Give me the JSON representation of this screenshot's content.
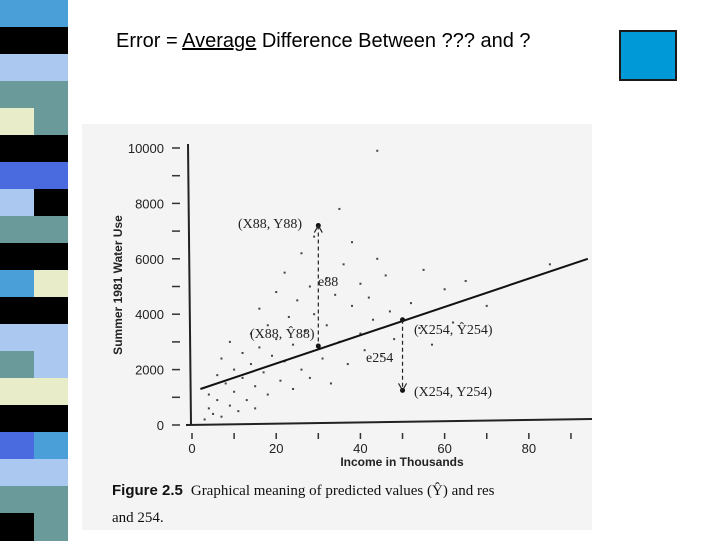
{
  "slide": {
    "title_prefix": "Error = ",
    "title_underlined": "Average",
    "title_suffix": " Difference Between ??? and ?",
    "accent_color": "#0099d8"
  },
  "stripe_colors": [
    "#4a9fd8",
    "#000000",
    "#aac8f0",
    "#6a9a9a",
    "#e8ecc8",
    "#000000",
    "#4a6ae0",
    "#aac8f0",
    "#6a9a9a",
    "#000000"
  ],
  "chart_data": {
    "type": "scatter",
    "title": "",
    "xlabel": "Income in Thousands",
    "ylabel": "Summer 1981 Water Use",
    "xlim": [
      0,
      95
    ],
    "ylim": [
      0,
      10000
    ],
    "x_ticks": [
      "0",
      "20",
      "40",
      "60",
      "80"
    ],
    "y_ticks": [
      "0",
      "2000",
      "4000",
      "6000",
      "8000",
      "10000"
    ],
    "regression_line": {
      "x": [
        2,
        94
      ],
      "y": [
        1300,
        6000
      ]
    },
    "annotations": {
      "obs_88": "(X88, Y88)",
      "pred_88": "(X88, Ŷ88)",
      "resid_88": "e88",
      "pred_254": "(X254, Ŷ254)",
      "resid_254": "e254",
      "obs_254": "(X254, Y254)"
    },
    "highlight_points": [
      {
        "x": 30,
        "y": 7200
      },
      {
        "x": 30,
        "y": 2850
      },
      {
        "x": 50,
        "y": 3800
      },
      {
        "x": 50,
        "y": 1250
      }
    ],
    "scatter_points": [
      {
        "x": 3,
        "y": 200
      },
      {
        "x": 4,
        "y": 600
      },
      {
        "x": 4,
        "y": 1100
      },
      {
        "x": 5,
        "y": 400
      },
      {
        "x": 6,
        "y": 1800
      },
      {
        "x": 6,
        "y": 900
      },
      {
        "x": 7,
        "y": 300
      },
      {
        "x": 7,
        "y": 2400
      },
      {
        "x": 8,
        "y": 1500
      },
      {
        "x": 9,
        "y": 700
      },
      {
        "x": 9,
        "y": 3000
      },
      {
        "x": 10,
        "y": 1200
      },
      {
        "x": 10,
        "y": 2000
      },
      {
        "x": 11,
        "y": 500
      },
      {
        "x": 12,
        "y": 2600
      },
      {
        "x": 12,
        "y": 1700
      },
      {
        "x": 13,
        "y": 900
      },
      {
        "x": 14,
        "y": 3300
      },
      {
        "x": 14,
        "y": 2200
      },
      {
        "x": 15,
        "y": 1400
      },
      {
        "x": 15,
        "y": 600
      },
      {
        "x": 16,
        "y": 4200
      },
      {
        "x": 16,
        "y": 2800
      },
      {
        "x": 17,
        "y": 1900
      },
      {
        "x": 18,
        "y": 3600
      },
      {
        "x": 18,
        "y": 1100
      },
      {
        "x": 19,
        "y": 2500
      },
      {
        "x": 20,
        "y": 4800
      },
      {
        "x": 20,
        "y": 3100
      },
      {
        "x": 21,
        "y": 1600
      },
      {
        "x": 22,
        "y": 5500
      },
      {
        "x": 22,
        "y": 2300
      },
      {
        "x": 23,
        "y": 3900
      },
      {
        "x": 24,
        "y": 1300
      },
      {
        "x": 24,
        "y": 2900
      },
      {
        "x": 25,
        "y": 4500
      },
      {
        "x": 26,
        "y": 6200
      },
      {
        "x": 26,
        "y": 2000
      },
      {
        "x": 27,
        "y": 3400
      },
      {
        "x": 28,
        "y": 5000
      },
      {
        "x": 28,
        "y": 1700
      },
      {
        "x": 29,
        "y": 6800
      },
      {
        "x": 29,
        "y": 4000
      },
      {
        "x": 31,
        "y": 2400
      },
      {
        "x": 32,
        "y": 5300
      },
      {
        "x": 32,
        "y": 3600
      },
      {
        "x": 33,
        "y": 1500
      },
      {
        "x": 34,
        "y": 4700
      },
      {
        "x": 35,
        "y": 7800
      },
      {
        "x": 35,
        "y": 3000
      },
      {
        "x": 36,
        "y": 5800
      },
      {
        "x": 37,
        "y": 2200
      },
      {
        "x": 38,
        "y": 4300
      },
      {
        "x": 38,
        "y": 6600
      },
      {
        "x": 40,
        "y": 3300
      },
      {
        "x": 40,
        "y": 5100
      },
      {
        "x": 41,
        "y": 2700
      },
      {
        "x": 42,
        "y": 4600
      },
      {
        "x": 43,
        "y": 3800
      },
      {
        "x": 44,
        "y": 6000
      },
      {
        "x": 45,
        "y": 2500
      },
      {
        "x": 46,
        "y": 5400
      },
      {
        "x": 47,
        "y": 4100
      },
      {
        "x": 48,
        "y": 3100
      },
      {
        "x": 52,
        "y": 4400
      },
      {
        "x": 54,
        "y": 3500
      },
      {
        "x": 55,
        "y": 5600
      },
      {
        "x": 57,
        "y": 2900
      },
      {
        "x": 60,
        "y": 4900
      },
      {
        "x": 62,
        "y": 3700
      },
      {
        "x": 65,
        "y": 5200
      },
      {
        "x": 70,
        "y": 4300
      },
      {
        "x": 44,
        "y": 9900
      },
      {
        "x": 85,
        "y": 5800
      }
    ]
  },
  "caption": {
    "figure_label": "Figure 2.5",
    "text": "Graphical meaning of predicted values (Ŷ) and res",
    "line2": "and 254."
  }
}
